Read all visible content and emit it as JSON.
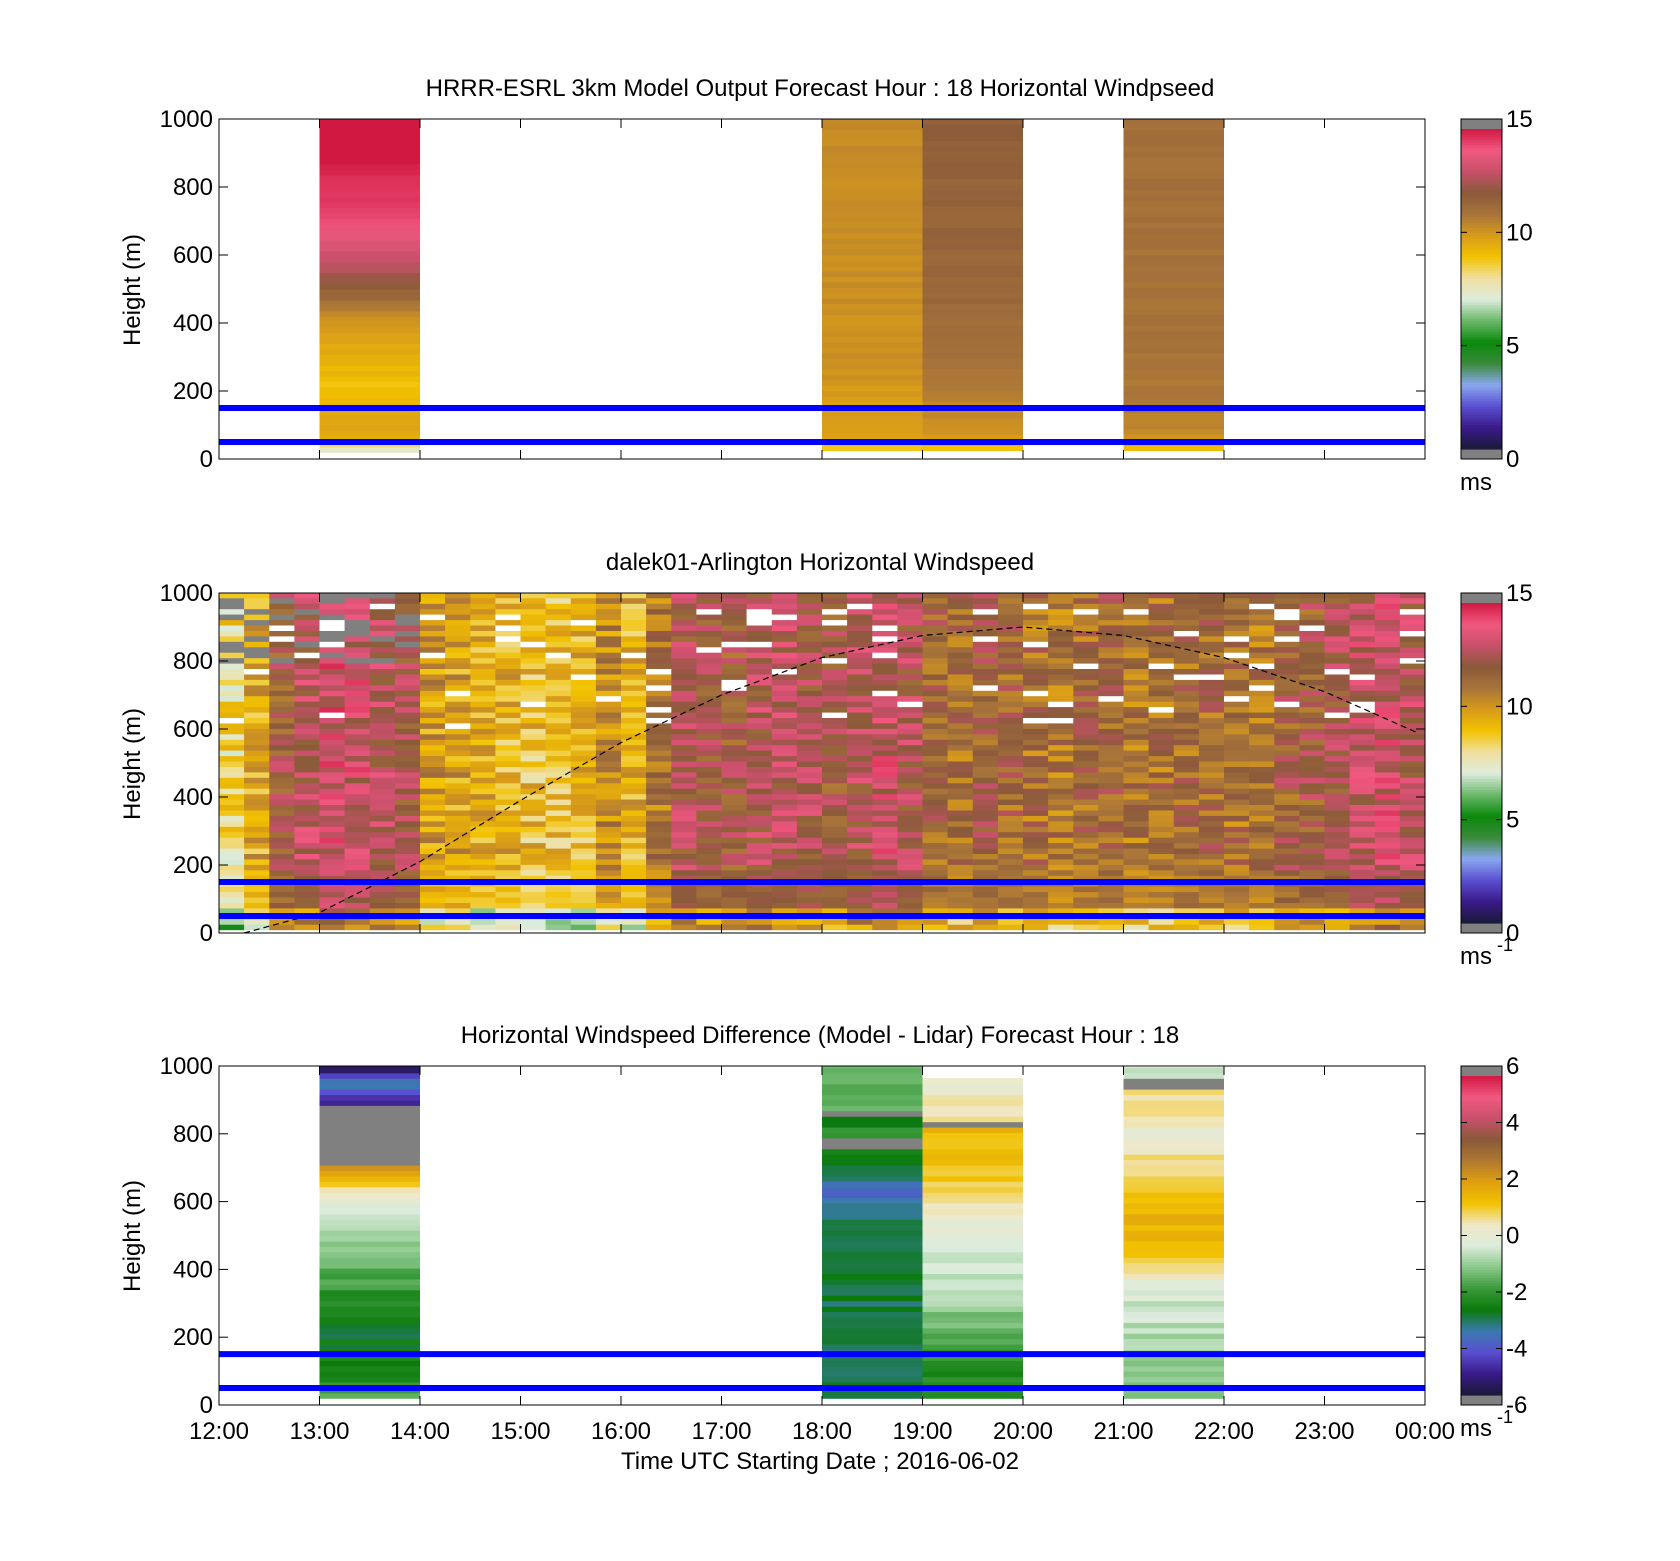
{
  "figure": {
    "xlabel": "Time UTC  Starting Date ; 2016-06-02",
    "x_ticks": [
      "12:00",
      "13:00",
      "14:00",
      "15:00",
      "16:00",
      "17:00",
      "18:00",
      "19:00",
      "20:00",
      "21:00",
      "22:00",
      "23:00",
      "00:00"
    ]
  },
  "colormaps": {
    "speed": [
      "#1a1a3a",
      "#3a1a8a",
      "#5a4fd0",
      "#8aa8f0",
      "#3a8a3a",
      "#0a8a0a",
      "#6ab86a",
      "#dcecdc",
      "#f0e0a0",
      "#f2c200",
      "#d89a1a",
      "#a8743a",
      "#8a5a3a",
      "#c8506a",
      "#f05880",
      "#d01840"
    ],
    "diff": [
      "#1a1a3a",
      "#3a1a8a",
      "#5a4fd0",
      "#3a7ab0",
      "#0a7a0a",
      "#3a9a3a",
      "#8ac88a",
      "#dcecdc",
      "#f0e8c8",
      "#f2c200",
      "#e0a010",
      "#b07830",
      "#8a5a3a",
      "#c8506a",
      "#f05880",
      "#d01840"
    ],
    "bar_end": "#808080",
    "line_color": "#0000ff"
  },
  "chart_data": [
    {
      "type": "heatmap",
      "title": "HRRR-ESRL 3km Model Output   Forecast Hour : 18 Horizontal Windpseed",
      "ylabel": "Height (m)",
      "ylim": [
        0,
        1000
      ],
      "xlim": [
        "12:00",
        "00:00"
      ],
      "y_ticks": [
        "0",
        "200",
        "400",
        "600",
        "800",
        "1000"
      ],
      "colorbar": {
        "ticks": [
          "0",
          "5",
          "10",
          "15"
        ],
        "range": [
          0,
          15
        ],
        "unit": "ms",
        "unit_sup": ""
      },
      "horizontal_lines_m": [
        50,
        150
      ],
      "columns": [
        {
          "start": "13:00",
          "end": "14:00",
          "profile": [
            [
              20,
              6.8
            ],
            [
              35,
              7.5
            ],
            [
              60,
              9.5
            ],
            [
              100,
              9.7
            ],
            [
              140,
              9.5
            ],
            [
              175,
              9.3
            ],
            [
              210,
              9.0
            ],
            [
              250,
              9.2
            ],
            [
              290,
              9.4
            ],
            [
              330,
              9.6
            ],
            [
              370,
              9.9
            ],
            [
              410,
              10.3
            ],
            [
              450,
              10.9
            ],
            [
              500,
              11.8
            ],
            [
              550,
              12.5
            ],
            [
              600,
              13.2
            ],
            [
              650,
              13.6
            ],
            [
              700,
              14.2
            ],
            [
              1000,
              15.5
            ]
          ]
        },
        {
          "start": "18:00",
          "end": "19:00",
          "profile": [
            [
              25,
              8.5
            ],
            [
              60,
              9.8
            ],
            [
              150,
              9.9
            ],
            [
              260,
              10.2
            ],
            [
              500,
              10.3
            ],
            [
              1000,
              10.4
            ]
          ]
        },
        {
          "start": "19:00",
          "end": "20:00",
          "profile": [
            [
              25,
              8.8
            ],
            [
              60,
              10.0
            ],
            [
              150,
              10.5
            ],
            [
              250,
              11.0
            ],
            [
              500,
              11.5
            ],
            [
              1000,
              11.8
            ]
          ]
        },
        {
          "start": "21:00",
          "end": "22:00",
          "profile": [
            [
              25,
              8.8
            ],
            [
              60,
              10.2
            ],
            [
              150,
              10.8
            ],
            [
              300,
              11.0
            ],
            [
              1000,
              11.2
            ]
          ]
        }
      ]
    },
    {
      "type": "heatmap",
      "title": "dalek01-Arlington  Horizontal Windspeed",
      "ylabel": "Height (m)",
      "ylim": [
        0,
        1000
      ],
      "xlim": [
        "12:00",
        "00:00"
      ],
      "y_ticks": [
        "0",
        "200",
        "400",
        "600",
        "800",
        "1000"
      ],
      "colorbar": {
        "ticks": [
          "0",
          "5",
          "10",
          "15"
        ],
        "range": [
          0,
          15
        ],
        "unit": "ms",
        "unit_sup": "-1"
      },
      "horizontal_lines_m": [
        50,
        150
      ],
      "boundary_layer_curve": [
        [
          "12:15",
          0
        ],
        [
          "13:00",
          60
        ],
        [
          "14:00",
          210
        ],
        [
          "15:00",
          390
        ],
        [
          "16:00",
          560
        ],
        [
          "17:00",
          700
        ],
        [
          "18:00",
          810
        ],
        [
          "19:00",
          875
        ],
        [
          "20:00",
          900
        ],
        [
          "21:00",
          875
        ],
        [
          "22:00",
          810
        ],
        [
          "23:00",
          710
        ],
        [
          "23:55",
          590
        ]
      ],
      "column_width_min": 15,
      "column_base_speed": [
        8.2,
        9.5,
        12.0,
        12.8,
        13.5,
        13.2,
        12.8,
        12.2,
        10.0,
        9.8,
        9.6,
        9.4,
        9.0,
        9.0,
        9.2,
        10.5,
        9.4,
        11.0,
        12.5,
        12.2,
        12.0,
        12.6,
        12.8,
        12.5,
        12.0,
        12.6,
        13.2,
        12.5,
        11.5,
        11.2,
        11.8,
        11.5,
        11.2,
        11.0,
        11.4,
        11.6,
        11.0,
        11.2,
        11.4,
        11.5,
        11.2,
        11.0,
        11.8,
        12.0,
        12.4,
        13.0,
        13.2,
        12.8
      ]
    },
    {
      "type": "heatmap",
      "title": "Horizontal Windspeed Difference (Model - Lidar) Forecast Hour : 18",
      "ylabel": "Height (m)",
      "ylim": [
        0,
        1000
      ],
      "xlim": [
        "12:00",
        "00:00"
      ],
      "y_ticks": [
        "0",
        "200",
        "400",
        "600",
        "800",
        "1000"
      ],
      "colorbar": {
        "ticks": [
          "-6",
          "-4",
          "-2",
          "0",
          "2",
          "4",
          "6"
        ],
        "range": [
          -6,
          6
        ],
        "unit": "ms",
        "unit_sup": "-1"
      },
      "horizontal_lines_m": [
        50,
        150
      ],
      "columns": [
        {
          "start": "13:00",
          "end": "14:00",
          "profile": [
            [
              20,
              -1.8
            ],
            [
              100,
              -2.6
            ],
            [
              200,
              -2.9
            ],
            [
              300,
              -2.5
            ],
            [
              400,
              -1.6
            ],
            [
              500,
              -0.9
            ],
            [
              580,
              -0.3
            ],
            [
              620,
              0.2
            ],
            [
              660,
              1.5
            ],
            [
              700,
              2.0
            ],
            [
              715,
              -2.8
            ],
            [
              880,
              -99
            ],
            [
              900,
              -5.2
            ],
            [
              920,
              -4.5
            ],
            [
              950,
              -3.0
            ],
            [
              980,
              -5.5
            ],
            [
              1000,
              -5.8
            ]
          ]
        },
        {
          "start": "18:00",
          "end": "19:00",
          "profile": [
            [
              20,
              -3.0
            ],
            [
              150,
              -3.2
            ],
            [
              300,
              -3.1
            ],
            [
              450,
              -3.0
            ],
            [
              560,
              -3.3
            ],
            [
              620,
              -4.0
            ],
            [
              680,
              -3.0
            ],
            [
              760,
              -2.5
            ],
            [
              780,
              -99
            ],
            [
              800,
              -2.0
            ],
            [
              850,
              -3.2
            ],
            [
              870,
              -99
            ],
            [
              900,
              -1.6
            ],
            [
              950,
              -1.8
            ],
            [
              1000,
              -1.6
            ]
          ]
        },
        {
          "start": "19:00",
          "end": "20:00",
          "profile": [
            [
              20,
              -2.2
            ],
            [
              100,
              -2.4
            ],
            [
              200,
              -1.8
            ],
            [
              300,
              -1.0
            ],
            [
              400,
              -0.6
            ],
            [
              460,
              -0.3
            ],
            [
              500,
              0.0
            ],
            [
              550,
              0.1
            ],
            [
              600,
              0.8
            ],
            [
              700,
              1.2
            ],
            [
              820,
              1.5
            ],
            [
              840,
              -99
            ],
            [
              900,
              0.6
            ],
            [
              930,
              0.1
            ],
            [
              960,
              0.5
            ]
          ]
        },
        {
          "start": "21:00",
          "end": "22:00",
          "profile": [
            [
              20,
              -1.5
            ],
            [
              100,
              -1.2
            ],
            [
              200,
              -0.8
            ],
            [
              300,
              -0.5
            ],
            [
              360,
              -0.1
            ],
            [
              400,
              0.6
            ],
            [
              450,
              1.4
            ],
            [
              550,
              1.6
            ],
            [
              650,
              1.0
            ],
            [
              720,
              0.6
            ],
            [
              800,
              0.2
            ],
            [
              840,
              0.4
            ],
            [
              930,
              0.5
            ],
            [
              960,
              -99
            ],
            [
              990,
              -0.6
            ]
          ]
        }
      ]
    }
  ]
}
